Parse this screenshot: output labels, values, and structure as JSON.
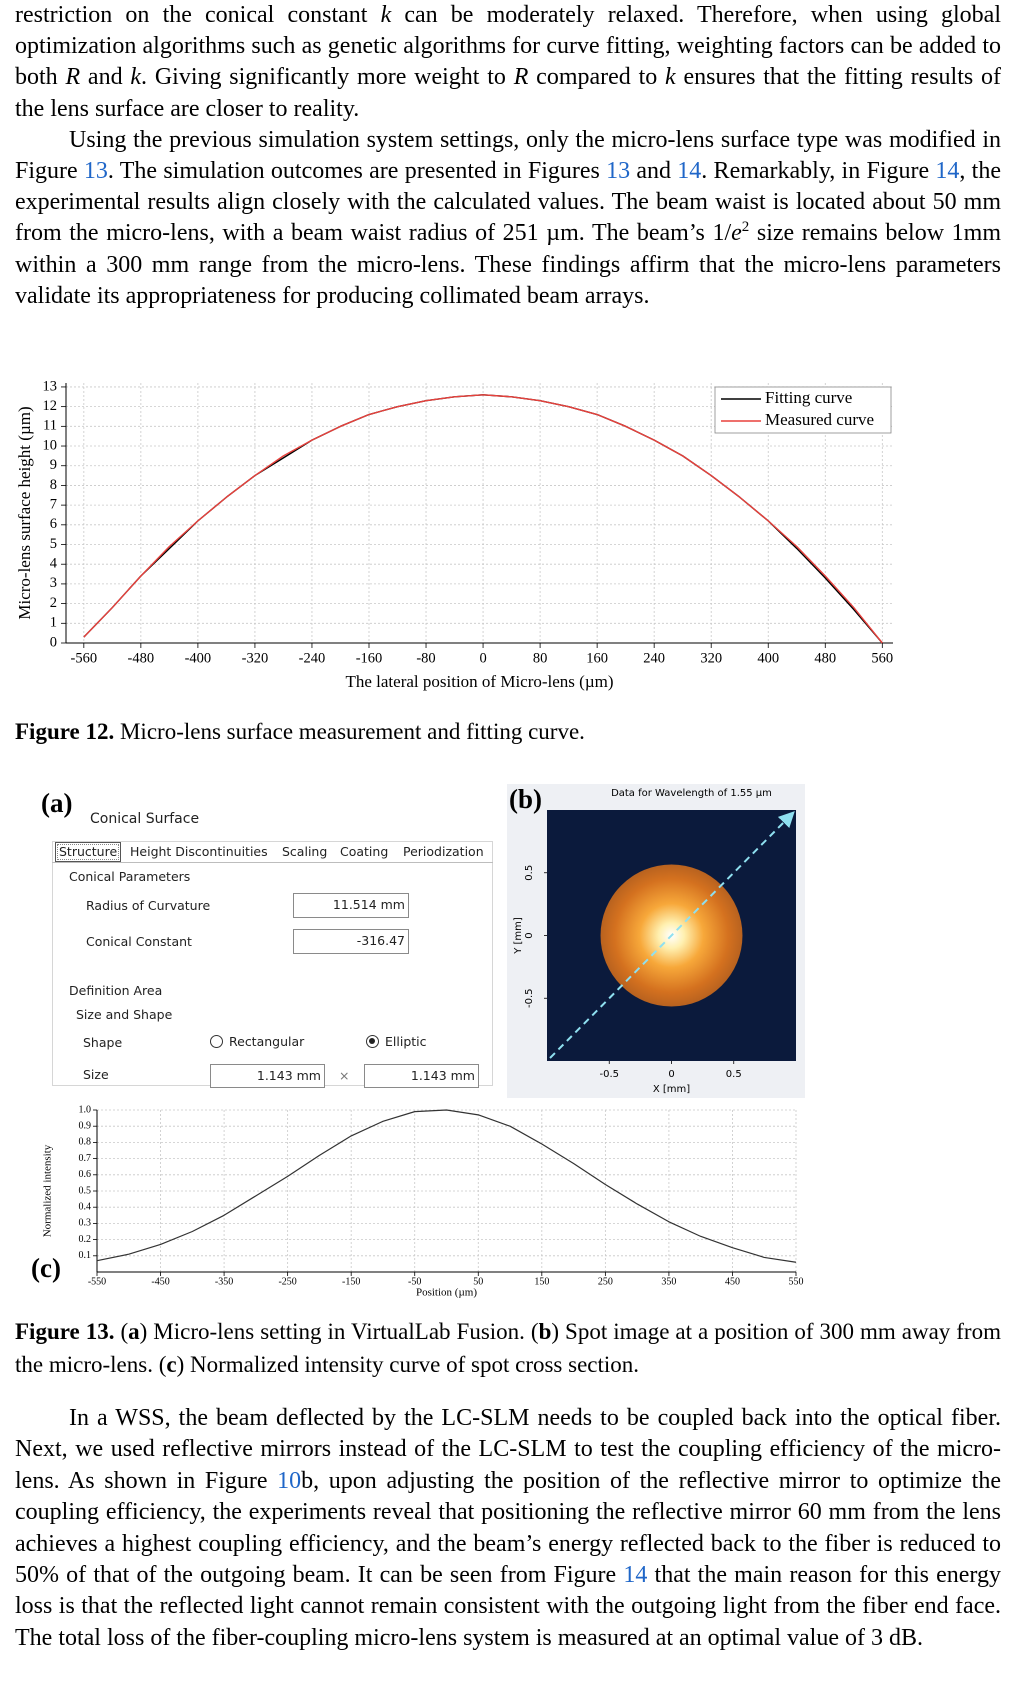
{
  "text_before": [
    [
      "restriction on the conical constant ",
      "k",
      " can be moderately relaxed. Therefore, when using global optimization algorithms such as genetic algorithms for curve fitting, weighting factors can be added to both ",
      "R",
      " and ",
      "k",
      ". Giving significantly more weight to ",
      "R",
      " compared to ",
      "k",
      " ensures that the fitting results of the lens surface are closer to reality."
    ],
    [
      "Using the previous simulation system settings, only the micro-lens surface type was modified in Figure ",
      "13",
      ". The simulation outcomes are presented in Figures ",
      "13",
      " and ",
      "14",
      ". Remarkably, in Figure ",
      "14",
      ", the experimental results align closely with the calculated values. The beam waist is located about 50 mm from the micro-lens, with a beam waist radius of 251 µm. The beam’s 1/",
      "e",
      "2",
      " size remains below 1mm within a 300 mm range from the micro-lens. These findings affirm that the micro-lens parameters validate its appropriateness for producing collimated beam arrays."
    ]
  ],
  "figure12_caption": [
    "Figure 12.",
    " Micro-lens surface measurement and fitting curve."
  ],
  "figure13_panel_a": {
    "label": "(a)",
    "title": "Conical Surface",
    "tabs": [
      "Structure",
      "Height Discontinuities",
      "Scaling",
      "Coating",
      "Periodization"
    ],
    "conical_parameters": {
      "heading": "Conical Parameters",
      "fields": [
        {
          "label": "Radius of Curvature",
          "value": "11.514 mm"
        },
        {
          "label": "Conical Constant",
          "value": "-316.47"
        }
      ]
    },
    "definition_area": {
      "heading": "Definition Area",
      "subheading": "Size and Shape",
      "shape_label": "Shape",
      "shape_options": [
        "Rectangular",
        "Elliptic"
      ],
      "size_label": "Size",
      "size_values": [
        "1.143 mm",
        "1.143 mm"
      ],
      "size_separator": "×"
    }
  },
  "chart_data": [
    {
      "type": "line",
      "xlabel": "The lateral position of Micro-lens (µm)",
      "ylabel": "Micro-lens surface height (µm)",
      "x": [
        -560,
        -520,
        -480,
        -440,
        -400,
        -360,
        -320,
        -280,
        -240,
        -200,
        -160,
        -120,
        -80,
        -40,
        0,
        40,
        80,
        120,
        160,
        200,
        240,
        280,
        320,
        360,
        400,
        440,
        480,
        520,
        560
      ],
      "series": [
        {
          "name": "Fitting curve",
          "color": "#000000",
          "values": [
            0.3,
            1.8,
            3.4,
            4.8,
            6.2,
            7.4,
            8.5,
            9.4,
            10.3,
            11.0,
            11.6,
            12.0,
            12.3,
            12.5,
            12.6,
            12.5,
            12.3,
            12.0,
            11.6,
            11.0,
            10.3,
            9.5,
            8.5,
            7.4,
            6.2,
            4.8,
            3.3,
            1.7,
            0.0
          ]
        },
        {
          "name": "Measured curve",
          "color": "#e8413c",
          "values": [
            0.3,
            1.8,
            3.4,
            4.9,
            6.2,
            7.4,
            8.5,
            9.5,
            10.3,
            11.0,
            11.6,
            12.0,
            12.3,
            12.5,
            12.6,
            12.5,
            12.3,
            12.0,
            11.6,
            11.0,
            10.3,
            9.5,
            8.5,
            7.4,
            6.2,
            4.9,
            3.4,
            1.8,
            0.0
          ]
        }
      ],
      "xlim": [
        -585,
        575
      ],
      "xticks": [
        -560,
        -480,
        -400,
        -320,
        -240,
        -160,
        -80,
        0,
        80,
        160,
        240,
        320,
        400,
        480,
        560
      ],
      "ylim": [
        0,
        13.2
      ],
      "yticks": [
        0,
        1,
        2,
        3,
        4,
        5,
        6,
        7,
        8,
        9,
        10,
        11,
        12,
        13
      ],
      "grid": true,
      "legend": "upper right"
    },
    {
      "type": "image",
      "panel_label": "(b)",
      "title": "Data for Wavelength of 1.55 µm",
      "xlabel": "X [mm]",
      "ylabel": "Y [mm]",
      "xlim": [
        -1,
        1
      ],
      "xticks": [
        -0.5,
        0,
        0.5
      ],
      "ylim": [
        -1,
        1
      ],
      "yticks": [
        -0.5,
        0,
        0.5
      ],
      "grid": false
    },
    {
      "type": "line",
      "panel_label": "(c)",
      "xlabel": "Position (µm)",
      "ylabel": "Normalized intensity",
      "x": [
        -550,
        -500,
        -450,
        -400,
        -350,
        -300,
        -250,
        -200,
        -150,
        -100,
        -50,
        0,
        50,
        100,
        150,
        200,
        250,
        300,
        350,
        400,
        450,
        500,
        550
      ],
      "values": [
        0.07,
        0.11,
        0.17,
        0.25,
        0.35,
        0.47,
        0.59,
        0.72,
        0.84,
        0.93,
        0.99,
        1.0,
        0.97,
        0.9,
        0.79,
        0.67,
        0.54,
        0.42,
        0.31,
        0.22,
        0.15,
        0.09,
        0.06
      ],
      "color": "#333333",
      "xlim": [
        -550,
        550
      ],
      "xticks": [
        -550,
        -450,
        -350,
        -250,
        -150,
        -50,
        50,
        150,
        250,
        350,
        450,
        550
      ],
      "ylim": [
        0,
        1
      ],
      "yticks": [
        0.1,
        0.2,
        0.3,
        0.4,
        0.5,
        0.6,
        0.7,
        0.8,
        0.9,
        {
          "value": 1,
          "label": "1.0"
        }
      ],
      "grid": true
    }
  ],
  "figure13_caption": [
    "Figure 13.",
    " (",
    "a",
    ") Micro-lens setting in VirtualLab Fusion. (",
    "b",
    ") Spot image at a position of 300 mm away from the micro-lens. (",
    "c",
    ") Normalized intensity curve of spot cross section."
  ],
  "text_after": [
    "In a WSS, the beam deflected by the LC-SLM needs to be coupled back into the optical fiber. Next, we used reflective mirrors instead of the LC-SLM to test the coupling efficiency of the micro-lens. As shown in Figure ",
    "10",
    "b, upon adjusting the position of the reflective mirror to optimize the coupling efficiency, the experiments reveal that positioning the reflective mirror 60 mm from the lens achieves a highest coupling efficiency, and the beam’s energy reflected back to the fiber is reduced to 50% of that of the outgoing beam. It can be seen from Figure ",
    "14",
    " that the main reason for this energy loss is that the reflected light cannot remain consistent with the outgoing light from the fiber end face. The total loss of the fiber-coupling micro-lens system is measured at an optimal value of 3 dB."
  ]
}
